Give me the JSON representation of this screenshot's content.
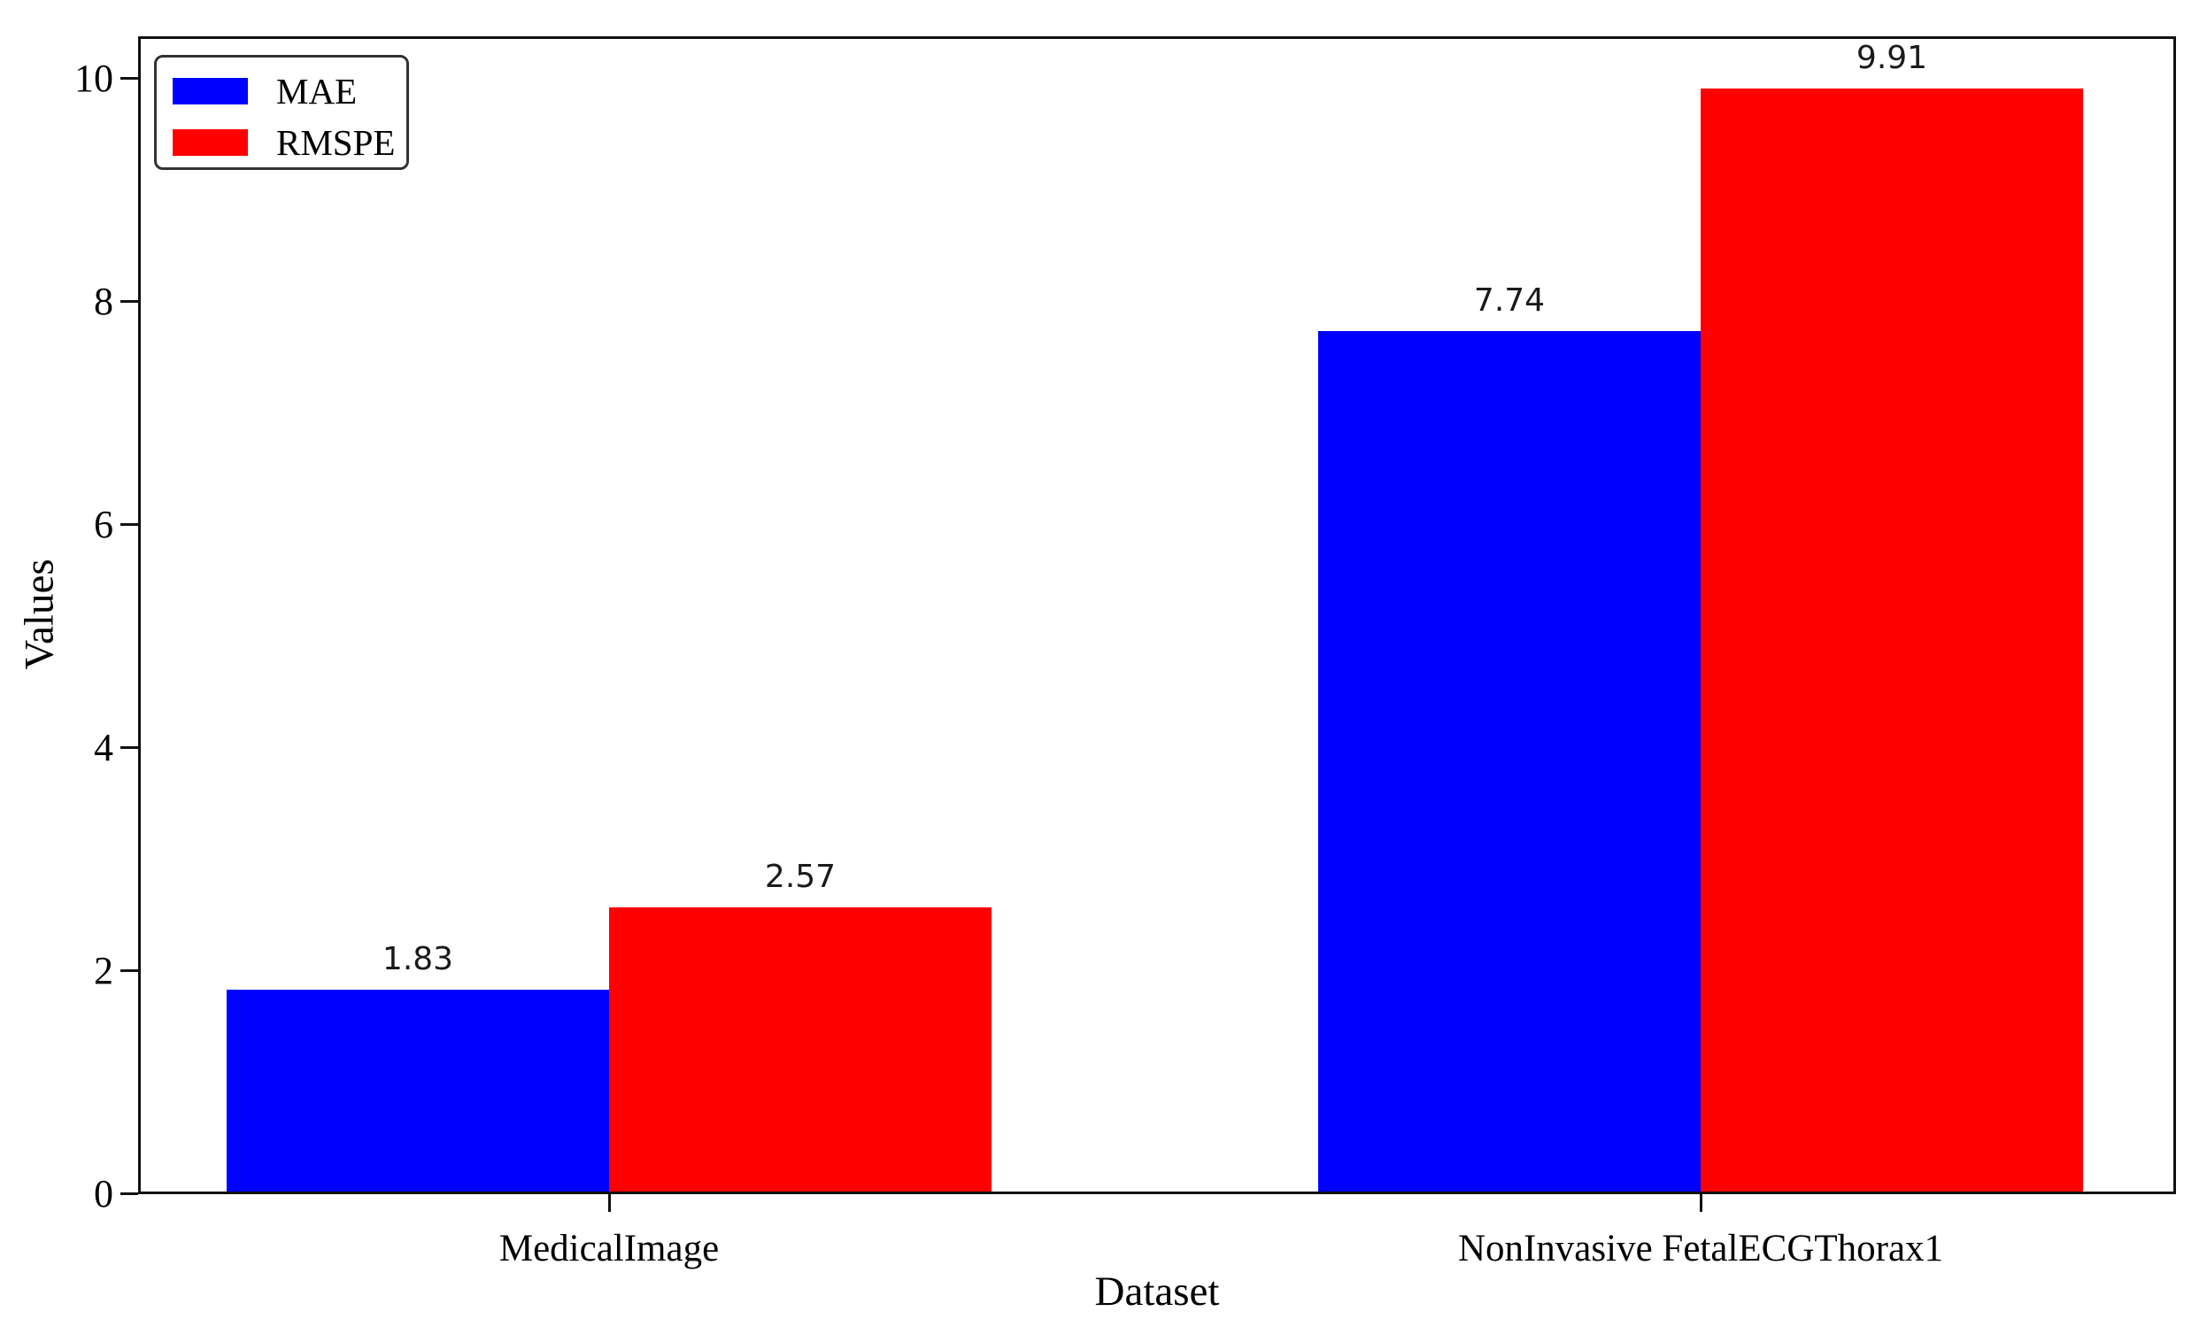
{
  "chart_data": {
    "type": "bar",
    "title": "",
    "xlabel": "Dataset",
    "ylabel": "Values",
    "categories": [
      "MedicalImage",
      "NonInvasive FetalECGThorax1"
    ],
    "series": [
      {
        "name": "MAE",
        "color": "#0000ff",
        "values": [
          1.83,
          7.74
        ],
        "labels": [
          "1.83",
          "7.74"
        ]
      },
      {
        "name": "RMSPE",
        "color": "#ff0000",
        "values": [
          2.57,
          9.91
        ],
        "labels": [
          "2.57",
          "9.91"
        ]
      }
    ],
    "yticks": [
      "0",
      "2",
      "4",
      "6",
      "8",
      "10"
    ],
    "ytick_values": [
      0,
      2,
      4,
      6,
      8,
      10
    ],
    "ylim": [
      0,
      10.38
    ],
    "grid": "off",
    "legend": {
      "position": "upper-left",
      "entries": [
        "MAE",
        "RMSPE"
      ]
    },
    "bar_value_labels_shown": true,
    "colors": {
      "axis": "#111111",
      "text": "#000000",
      "background": "#ffffff"
    }
  }
}
